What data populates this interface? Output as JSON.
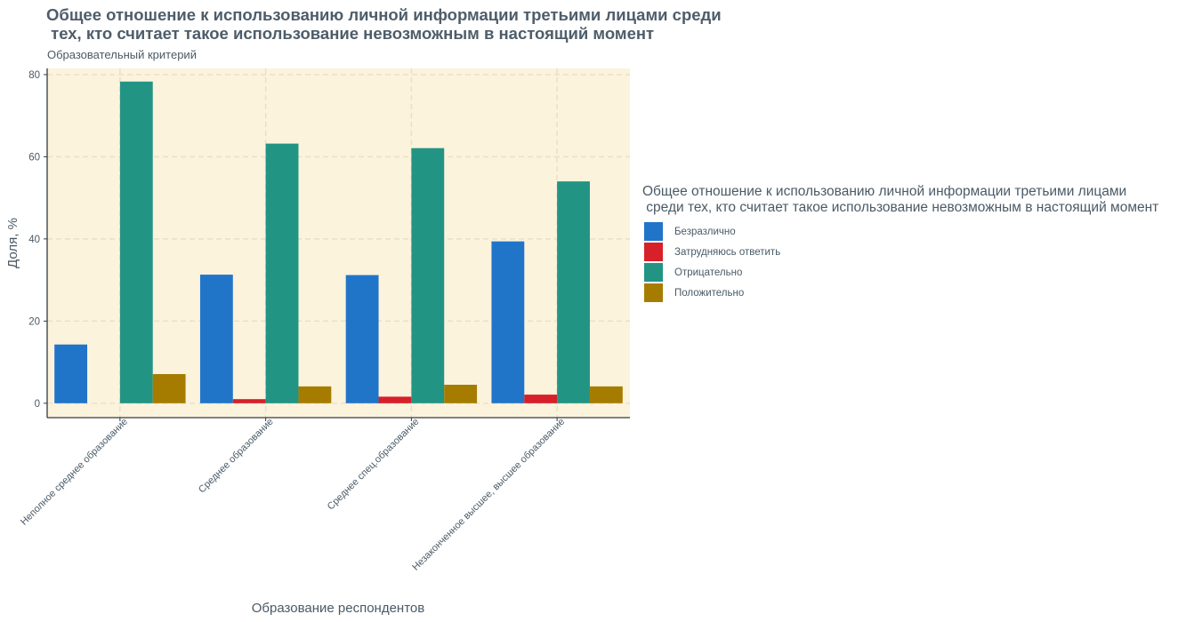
{
  "chart_data": {
    "type": "bar",
    "title": "Общее отношение к использованию личной информации третьими лицами среди\n тех, кто считает такое использование невозможным в настоящий момент",
    "subtitle": "Образовательный критерий",
    "xlabel": "Образование респондентов",
    "ylabel": "Доля, %",
    "ylim": [
      -3.5,
      81.5
    ],
    "yticks": [
      0,
      20,
      40,
      60,
      80
    ],
    "grid": true,
    "categories": [
      "Неполное среднее образование",
      "Среднее образование",
      "Среднее спец.образование",
      "Незаконченное высшее, высшее образование"
    ],
    "series": [
      {
        "name": "Безразлично",
        "color": "#2175c9",
        "values": [
          14.3,
          31.3,
          31.2,
          39.4
        ]
      },
      {
        "name": "Затрудняюсь ответить",
        "color": "#d7202a",
        "values": [
          0,
          1.0,
          1.6,
          2.1
        ]
      },
      {
        "name": "Отрицательно",
        "color": "#229484",
        "values": [
          78.3,
          63.2,
          62.1,
          54.0
        ]
      },
      {
        "name": "Положительно",
        "color": "#a67c00",
        "values": [
          7.1,
          4.1,
          4.5,
          4.1
        ]
      }
    ],
    "legend": {
      "title": "Общее отношение к использованию личной информации третьими лицами\n среди тех, кто считает такое использование невозможным в настоящий момент",
      "position": "right"
    },
    "panel_color": "#fcf3dd",
    "grid_color": "#e8dfc8"
  }
}
